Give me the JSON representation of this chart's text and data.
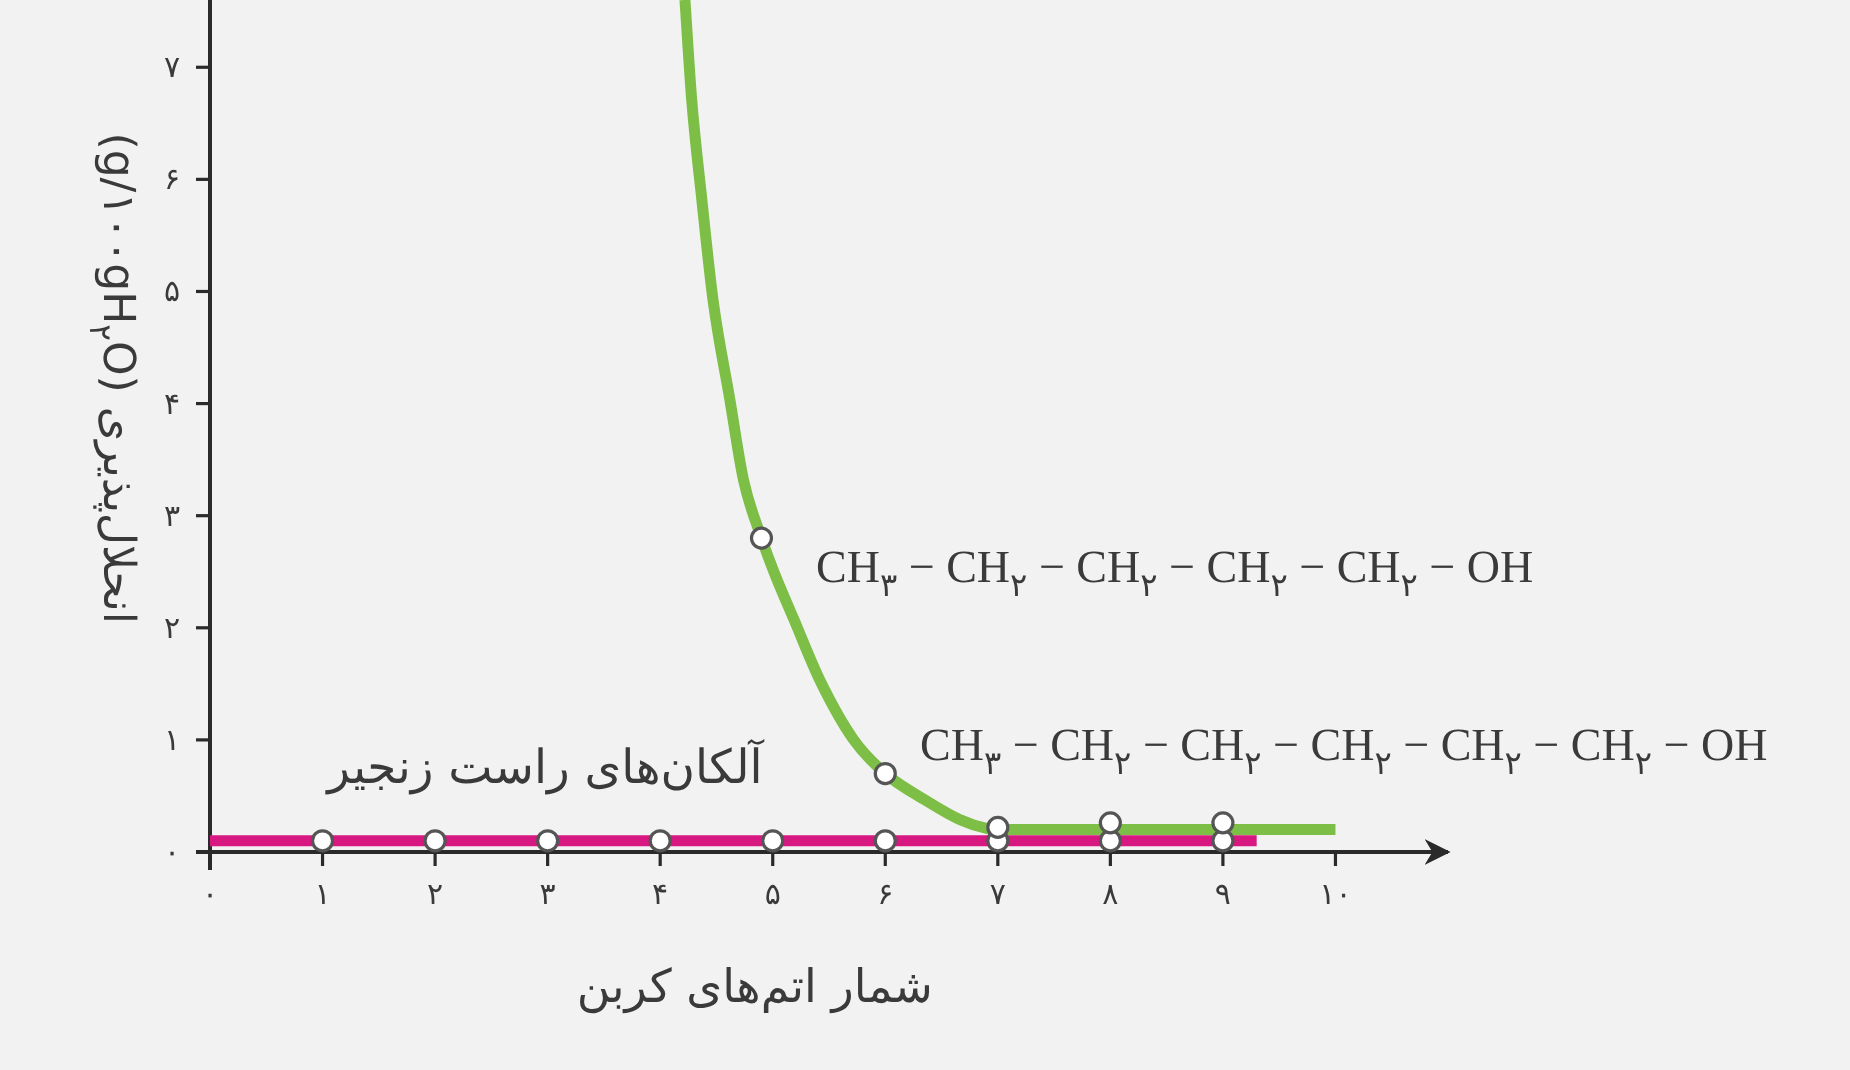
{
  "chart_data": {
    "type": "line",
    "xlabel": "شمار اتم‌های کربن",
    "ylabel": "انحلال‌پذیری (g/۱۰۰gH$_{۲}$O)",
    "xlim": [
      0,
      11
    ],
    "ylim": [
      0,
      7.6
    ],
    "xticks": [
      {
        "value": 0,
        "label": "۰"
      },
      {
        "value": 1,
        "label": "۱"
      },
      {
        "value": 2,
        "label": "۲"
      },
      {
        "value": 3,
        "label": "۳"
      },
      {
        "value": 4,
        "label": "۴"
      },
      {
        "value": 5,
        "label": "۵"
      },
      {
        "value": 6,
        "label": "۶"
      },
      {
        "value": 7,
        "label": "۷"
      },
      {
        "value": 8,
        "label": "۸"
      },
      {
        "value": 9,
        "label": "۹"
      },
      {
        "value": 10,
        "label": "۱۰"
      }
    ],
    "yticks": [
      {
        "value": 0,
        "label": "۰"
      },
      {
        "value": 1,
        "label": "۱"
      },
      {
        "value": 2,
        "label": "۲"
      },
      {
        "value": 3,
        "label": "۳"
      },
      {
        "value": 4,
        "label": "۴"
      },
      {
        "value": 5,
        "label": "۵"
      },
      {
        "value": 6,
        "label": "۶"
      },
      {
        "value": 7,
        "label": "۷"
      }
    ],
    "series": [
      {
        "name": "آلکان‌های راست زنجیر",
        "color": "#d61880",
        "marker": "none",
        "x": [
          0,
          9.3
        ],
        "values": [
          0.1,
          0.1
        ]
      },
      {
        "color": "#7dbe46",
        "marker": "none",
        "x": [
          4.22,
          4.28,
          4.37,
          4.47,
          4.62,
          4.74,
          4.9,
          5.01,
          5.19,
          5.42,
          5.72,
          6.0,
          6.36,
          6.66,
          6.9,
          7,
          10
        ],
        "values": [
          7.6,
          6.71,
          5.82,
          4.92,
          4.03,
          3.32,
          2.8,
          2.5,
          2.07,
          1.53,
          1.0,
          0.7,
          0.46,
          0.29,
          0.21,
          0.2,
          0.2
        ]
      },
      {
        "type": "scatter",
        "color": "#555555",
        "marker": "circle",
        "x": [
          1,
          2,
          3,
          4,
          5,
          6,
          7,
          8,
          9
        ],
        "values": [
          0.1,
          0.1,
          0.1,
          0.1,
          0.1,
          0.1,
          0.1,
          0.1,
          0.1
        ]
      },
      {
        "type": "scatter",
        "color": "#555555",
        "marker": "circle",
        "x": [
          4.9,
          6,
          7,
          8,
          9
        ],
        "values": [
          2.8,
          0.7,
          0.22,
          0.26,
          0.26
        ]
      }
    ],
    "annotations": [
      "CH$_{۳}$ − CH$_{۲}$ − CH$_{۲}$ − CH$_{۲}$ − CH$_{۲}$ − OH",
      "CH$_{۳}$ − CH$_{۲}$ − CH$_{۲}$ − CH$_{۲}$ − CH$_{۲}$ − CH$_{۲}$ − OH"
    ]
  }
}
